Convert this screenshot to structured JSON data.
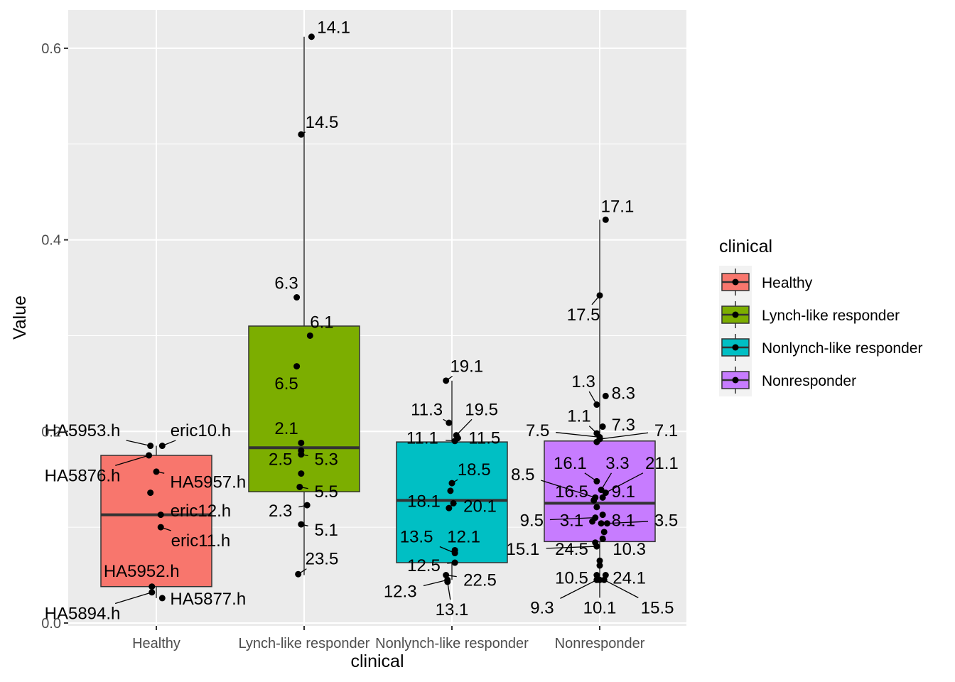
{
  "chart_data": {
    "type": "boxplot",
    "xlabel": "clinical",
    "ylabel": "Value",
    "ylim": [
      -0.003,
      0.64
    ],
    "yticks": [
      0.0,
      0.2,
      0.4,
      0.6
    ],
    "ytick_labels": [
      "0.0",
      "0.2",
      "0.4",
      "0.6"
    ],
    "grid": true,
    "legend": {
      "title": "clinical",
      "position": "right"
    },
    "categories": [
      "Healthy",
      "Lynch-like responder",
      "Nonlynch-like responder",
      "Nonresponder"
    ],
    "colors": {
      "Healthy": "#F8766D",
      "Lynch-like responder": "#7CAE00",
      "Nonlynch-like responder": "#00BFC4",
      "Nonresponder": "#C77CFF"
    },
    "series": [
      {
        "name": "Healthy",
        "box": {
          "q1": 0.038,
          "median": 0.113,
          "q3": 0.175,
          "whisker_low": 0.026,
          "whisker_high": 0.185
        },
        "points": [
          {
            "x": -0.04,
            "y": 0.185,
            "label": "HA5953.h",
            "lx": -0.5,
            "ly": 0.201
          },
          {
            "x": 0.04,
            "y": 0.185,
            "label": "eric10.h",
            "lx": 0.3,
            "ly": 0.201
          },
          {
            "x": -0.05,
            "y": 0.175,
            "label": "HA5876.h",
            "lx": -0.5,
            "ly": 0.154
          },
          {
            "x": 0.0,
            "y": 0.158,
            "label": "HA5957.h",
            "lx": 0.35,
            "ly": 0.147
          },
          {
            "x": -0.04,
            "y": 0.136,
            "label": "",
            "lx": 0,
            "ly": 0
          },
          {
            "x": 0.03,
            "y": 0.113,
            "label": "eric12.h",
            "lx": 0.3,
            "ly": 0.117
          },
          {
            "x": 0.03,
            "y": 0.1,
            "label": "eric11.h",
            "lx": 0.3,
            "ly": 0.086
          },
          {
            "x": -0.03,
            "y": 0.038,
            "label": "HA5952.h",
            "lx": -0.1,
            "ly": 0.054
          },
          {
            "x": -0.03,
            "y": 0.032,
            "label": "HA5894.h",
            "lx": -0.5,
            "ly": 0.01
          },
          {
            "x": 0.04,
            "y": 0.026,
            "label": "HA5877.h",
            "lx": 0.35,
            "ly": 0.025
          }
        ]
      },
      {
        "name": "Lynch-like responder",
        "box": {
          "q1": 0.137,
          "median": 0.183,
          "q3": 0.31,
          "whisker_low": 0.05,
          "whisker_high": 0.612
        },
        "points": [
          {
            "x": 0.05,
            "y": 0.612,
            "label": "14.1",
            "lx": 0.2,
            "ly": 0.622
          },
          {
            "x": -0.02,
            "y": 0.51,
            "label": "14.5",
            "lx": 0.12,
            "ly": 0.523
          },
          {
            "x": -0.05,
            "y": 0.34,
            "label": "6.3",
            "lx": -0.12,
            "ly": 0.355
          },
          {
            "x": 0.04,
            "y": 0.3,
            "label": "6.1",
            "lx": 0.12,
            "ly": 0.314
          },
          {
            "x": -0.05,
            "y": 0.268,
            "label": "6.5",
            "lx": -0.12,
            "ly": 0.25
          },
          {
            "x": -0.02,
            "y": 0.188,
            "label": "2.1",
            "lx": -0.12,
            "ly": 0.203
          },
          {
            "x": -0.02,
            "y": 0.18,
            "label": "2.5",
            "lx": -0.16,
            "ly": 0.171
          },
          {
            "x": -0.02,
            "y": 0.176,
            "label": "5.3",
            "lx": 0.15,
            "ly": 0.171
          },
          {
            "x": -0.02,
            "y": 0.156,
            "label": "",
            "lx": 0,
            "ly": 0
          },
          {
            "x": -0.03,
            "y": 0.142,
            "label": "5.5",
            "lx": 0.15,
            "ly": 0.137
          },
          {
            "x": 0.02,
            "y": 0.123,
            "label": "2.3",
            "lx": -0.16,
            "ly": 0.117
          },
          {
            "x": -0.02,
            "y": 0.103,
            "label": "5.1",
            "lx": 0.15,
            "ly": 0.097
          },
          {
            "x": -0.04,
            "y": 0.051,
            "label": "23.5",
            "lx": 0.12,
            "ly": 0.067
          }
        ]
      },
      {
        "name": "Nonlynch-like responder",
        "box": {
          "q1": 0.063,
          "median": 0.128,
          "q3": 0.189,
          "whisker_low": 0.045,
          "whisker_high": 0.253
        },
        "points": [
          {
            "x": -0.04,
            "y": 0.253,
            "label": "19.1",
            "lx": 0.1,
            "ly": 0.268
          },
          {
            "x": -0.02,
            "y": 0.209,
            "label": "11.3",
            "lx": -0.17,
            "ly": 0.223
          },
          {
            "x": 0.03,
            "y": 0.196,
            "label": "19.5",
            "lx": 0.2,
            "ly": 0.223
          },
          {
            "x": 0.02,
            "y": 0.19,
            "label": "11.1",
            "lx": -0.2,
            "ly": 0.193
          },
          {
            "x": 0.04,
            "y": 0.193,
            "label": "11.5",
            "lx": 0.22,
            "ly": 0.193
          },
          {
            "x": 0.0,
            "y": 0.146,
            "label": "18.5",
            "lx": 0.15,
            "ly": 0.16
          },
          {
            "x": -0.01,
            "y": 0.138,
            "label": "",
            "lx": 0,
            "ly": 0
          },
          {
            "x": -0.02,
            "y": 0.12,
            "label": "18.1",
            "lx": -0.19,
            "ly": 0.127
          },
          {
            "x": 0.01,
            "y": 0.125,
            "label": "20.1",
            "lx": 0.19,
            "ly": 0.122
          },
          {
            "x": 0.02,
            "y": 0.073,
            "label": "13.5",
            "lx": -0.24,
            "ly": 0.09
          },
          {
            "x": 0.02,
            "y": 0.076,
            "label": "12.1",
            "lx": 0.08,
            "ly": 0.09
          },
          {
            "x": 0.02,
            "y": 0.063,
            "label": "12.5",
            "lx": -0.19,
            "ly": 0.06
          },
          {
            "x": -0.04,
            "y": 0.05,
            "label": "22.5",
            "lx": 0.19,
            "ly": 0.045
          },
          {
            "x": -0.03,
            "y": 0.045,
            "label": "12.3",
            "lx": -0.35,
            "ly": 0.033
          },
          {
            "x": -0.03,
            "y": 0.043,
            "label": "13.1",
            "lx": 0.0,
            "ly": 0.014
          }
        ]
      },
      {
        "name": "Nonresponder",
        "box": {
          "q1": 0.085,
          "median": 0.125,
          "q3": 0.19,
          "whisker_low": 0.045,
          "whisker_high": 0.421
        },
        "points": [
          {
            "x": 0.04,
            "y": 0.421,
            "label": "17.1",
            "lx": 0.12,
            "ly": 0.435
          },
          {
            "x": 0.0,
            "y": 0.342,
            "label": "17.5",
            "lx": -0.11,
            "ly": 0.322
          },
          {
            "x": 0.04,
            "y": 0.237,
            "label": "8.3",
            "lx": 0.16,
            "ly": 0.24
          },
          {
            "x": -0.02,
            "y": 0.228,
            "label": "1.3",
            "lx": -0.11,
            "ly": 0.252
          },
          {
            "x": 0.02,
            "y": 0.205,
            "label": "7.3",
            "lx": 0.16,
            "ly": 0.207
          },
          {
            "x": -0.02,
            "y": 0.198,
            "label": "1.1",
            "lx": -0.14,
            "ly": 0.216
          },
          {
            "x": 0.0,
            "y": 0.194,
            "label": "7.5",
            "lx": -0.42,
            "ly": 0.201
          },
          {
            "x": 0.0,
            "y": 0.192,
            "label": "7.1",
            "lx": 0.45,
            "ly": 0.201
          },
          {
            "x": -0.02,
            "y": 0.189,
            "label": "",
            "lx": 0,
            "ly": 0
          },
          {
            "x": -0.02,
            "y": 0.148,
            "label": "16.1",
            "lx": -0.2,
            "ly": 0.167
          },
          {
            "x": 0.01,
            "y": 0.139,
            "label": "3.3",
            "lx": 0.12,
            "ly": 0.167
          },
          {
            "x": 0.04,
            "y": 0.136,
            "label": "21.1",
            "lx": 0.42,
            "ly": 0.167
          },
          {
            "x": -0.03,
            "y": 0.131,
            "label": "8.5",
            "lx": -0.52,
            "ly": 0.155
          },
          {
            "x": -0.04,
            "y": 0.128,
            "label": "16.5",
            "lx": -0.19,
            "ly": 0.137
          },
          {
            "x": 0.02,
            "y": 0.131,
            "label": "9.1",
            "lx": 0.16,
            "ly": 0.137
          },
          {
            "x": -0.02,
            "y": 0.121,
            "label": "",
            "lx": 0,
            "ly": 0
          },
          {
            "x": 0.02,
            "y": 0.113,
            "label": "",
            "lx": 0,
            "ly": 0
          },
          {
            "x": -0.05,
            "y": 0.106,
            "label": "3.1",
            "lx": -0.19,
            "ly": 0.107
          },
          {
            "x": -0.03,
            "y": 0.11,
            "label": "9.5",
            "lx": -0.46,
            "ly": 0.107
          },
          {
            "x": 0.01,
            "y": 0.104,
            "label": "8.1",
            "lx": 0.16,
            "ly": 0.107
          },
          {
            "x": 0.05,
            "y": 0.104,
            "label": "3.5",
            "lx": 0.45,
            "ly": 0.107
          },
          {
            "x": 0.03,
            "y": 0.095,
            "label": "",
            "lx": 0,
            "ly": 0
          },
          {
            "x": 0.02,
            "y": 0.088,
            "label": "10.3",
            "lx": 0.2,
            "ly": 0.077
          },
          {
            "x": -0.03,
            "y": 0.084,
            "label": "24.5",
            "lx": -0.19,
            "ly": 0.077
          },
          {
            "x": -0.02,
            "y": 0.08,
            "label": "15.1",
            "lx": -0.52,
            "ly": 0.077
          },
          {
            "x": 0.0,
            "y": 0.065,
            "label": "",
            "lx": 0,
            "ly": 0
          },
          {
            "x": 0.0,
            "y": 0.06,
            "label": "",
            "lx": 0,
            "ly": 0
          },
          {
            "x": -0.02,
            "y": 0.05,
            "label": "10.5",
            "lx": -0.19,
            "ly": 0.047
          },
          {
            "x": 0.04,
            "y": 0.05,
            "label": "24.1",
            "lx": 0.2,
            "ly": 0.047
          },
          {
            "x": -0.02,
            "y": 0.045,
            "label": "9.3",
            "lx": -0.39,
            "ly": 0.016
          },
          {
            "x": 0.0,
            "y": 0.045,
            "label": "10.1",
            "lx": 0.0,
            "ly": 0.016
          },
          {
            "x": 0.03,
            "y": 0.045,
            "label": "15.5",
            "lx": 0.39,
            "ly": 0.016
          }
        ]
      }
    ]
  }
}
